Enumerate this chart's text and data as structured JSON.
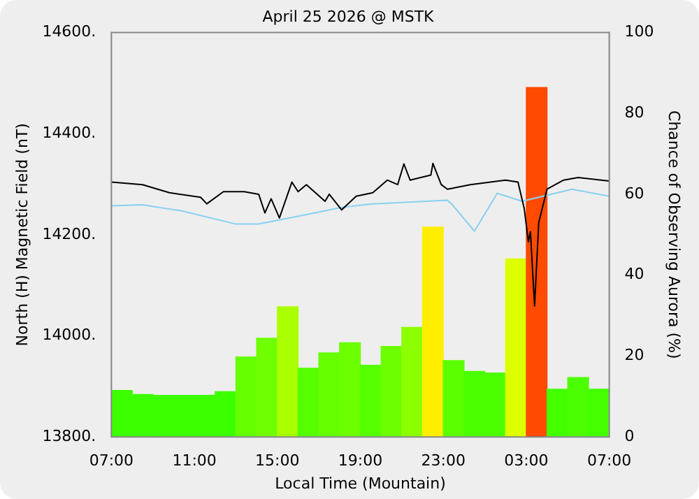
{
  "chart_data": {
    "type": "line",
    "title": "April 25 2026 @ MSTK",
    "xlabel": "Local Time (Mountain)",
    "ylabel": "North (H) Magnetic Field (nT)",
    "y2label": "Chance of Observing Aurora (%)",
    "marker": "none",
    "xlim": [
      "2026-04-25T07:00",
      "2026-04-26T07:00"
    ],
    "xticks": [
      {
        "value": "2026-04-25T07:00",
        "label": "07:00"
      },
      {
        "value": "2026-04-25T11:00",
        "label": "11:00"
      },
      {
        "value": "2026-04-25T15:00",
        "label": "15:00"
      },
      {
        "value": "2026-04-25T19:00",
        "label": "19:00"
      },
      {
        "value": "2026-04-25T23:00",
        "label": "23:00"
      },
      {
        "value": "2026-04-26T03:00",
        "label": "03:00"
      },
      {
        "value": "2026-04-26T07:00",
        "label": "07:00"
      }
    ],
    "ylim": [
      13800,
      14600
    ],
    "yticks": [
      {
        "value": 13800,
        "label": "13800."
      },
      {
        "value": 14000,
        "label": "14000."
      },
      {
        "value": 14200,
        "label": "14200."
      },
      {
        "value": 14400,
        "label": "14400."
      },
      {
        "value": 14600,
        "label": "14600."
      }
    ],
    "y2lim": [
      0,
      100
    ],
    "y2ticks": [
      0,
      20,
      40,
      60,
      80,
      100
    ],
    "series": [
      {
        "type": "bar",
        "axis": "y2",
        "x": [
          "2026-04-25T07:30",
          "2026-04-25T08:30",
          "2026-04-25T09:30",
          "2026-04-25T10:30",
          "2026-04-25T11:30",
          "2026-04-25T12:30",
          "2026-04-25T13:30",
          "2026-04-25T14:30",
          "2026-04-25T15:30",
          "2026-04-25T16:30",
          "2026-04-25T17:30",
          "2026-04-25T18:30",
          "2026-04-25T19:30",
          "2026-04-25T20:30",
          "2026-04-25T21:30",
          "2026-04-25T22:30",
          "2026-04-25T23:30",
          "2026-04-26T00:30",
          "2026-04-26T01:30",
          "2026-04-26T02:30",
          "2026-04-26T03:30",
          "2026-04-26T04:30",
          "2026-04-26T05:30",
          "2026-04-26T06:30"
        ],
        "values": [
          11.5,
          10.5,
          10.3,
          10.3,
          10.3,
          11.2,
          19.8,
          24.4,
          32.2,
          17,
          20.8,
          23.3,
          17.7,
          22.4,
          27.1,
          51.9,
          18.9,
          16.2,
          15.8,
          44,
          86.4,
          11.8,
          14.7,
          11.8
        ],
        "colors": [
          "#3cff00",
          "#3cff00",
          "#3cff00",
          "#3cff00",
          "#3cff00",
          "#3cff00",
          "#66ff00",
          "#70ff00",
          "#aaff00",
          "#55ff00",
          "#66ff00",
          "#6cff00",
          "#55ff00",
          "#6cff00",
          "#8cff00",
          "#ffee00",
          "#5cff00",
          "#4cff00",
          "#4cff00",
          "#ddff00",
          "#ff4a00",
          "#44ff00",
          "#4cff00",
          "#44ff00"
        ]
      },
      {
        "color": "#000000",
        "x": [
          "2026-04-25T07:00",
          "2026-04-25T08:30",
          "2026-04-25T09:48",
          "2026-04-25T11:18",
          "2026-04-25T11:36",
          "2026-04-25T12:24",
          "2026-04-25T13:24",
          "2026-04-25T14:06",
          "2026-04-25T14:24",
          "2026-04-25T14:42",
          "2026-04-25T15:06",
          "2026-04-25T15:42",
          "2026-04-25T16:00",
          "2026-04-25T16:24",
          "2026-04-25T17:18",
          "2026-04-25T17:30",
          "2026-04-25T18:06",
          "2026-04-25T18:48",
          "2026-04-25T19:36",
          "2026-04-25T20:18",
          "2026-04-25T20:48",
          "2026-04-25T21:06",
          "2026-04-25T21:24",
          "2026-04-25T22:24",
          "2026-04-25T22:30",
          "2026-04-25T22:54",
          "2026-04-25T23:12",
          "2026-04-26T00:18",
          "2026-04-26T02:00",
          "2026-04-26T02:36",
          "2026-04-26T02:54",
          "2026-04-26T03:06",
          "2026-04-26T03:12",
          "2026-04-26T03:24",
          "2026-04-26T03:36",
          "2026-04-26T04:00",
          "2026-04-26T04:48",
          "2026-04-26T05:30",
          "2026-04-26T07:00"
        ],
        "values": [
          14304,
          14299,
          14283,
          14274,
          14261,
          14285,
          14285,
          14280,
          14243,
          14271,
          14233,
          14304,
          14285,
          14299,
          14266,
          14280,
          14249,
          14276,
          14283,
          14308,
          14299,
          14340,
          14308,
          14318,
          14341,
          14299,
          14290,
          14299,
          14308,
          14304,
          14252,
          14186,
          14206,
          14059,
          14224,
          14290,
          14308,
          14313,
          14306
        ]
      },
      {
        "color": "#88d0f0",
        "x": [
          "2026-04-25T07:00",
          "2026-04-25T08:30",
          "2026-04-25T10:24",
          "2026-04-25T13:00",
          "2026-04-25T14:06",
          "2026-04-25T16:12",
          "2026-04-25T18:06",
          "2026-04-25T19:36",
          "2026-04-25T23:12",
          "2026-04-25T23:24",
          "2026-04-26T00:30",
          "2026-04-26T01:36",
          "2026-04-26T02:48",
          "2026-04-26T05:12",
          "2026-04-26T07:00"
        ],
        "values": [
          14257,
          14259,
          14247,
          14221,
          14221,
          14238,
          14254,
          14261,
          14268,
          14261,
          14207,
          14282,
          14266,
          14290,
          14276
        ]
      }
    ]
  }
}
